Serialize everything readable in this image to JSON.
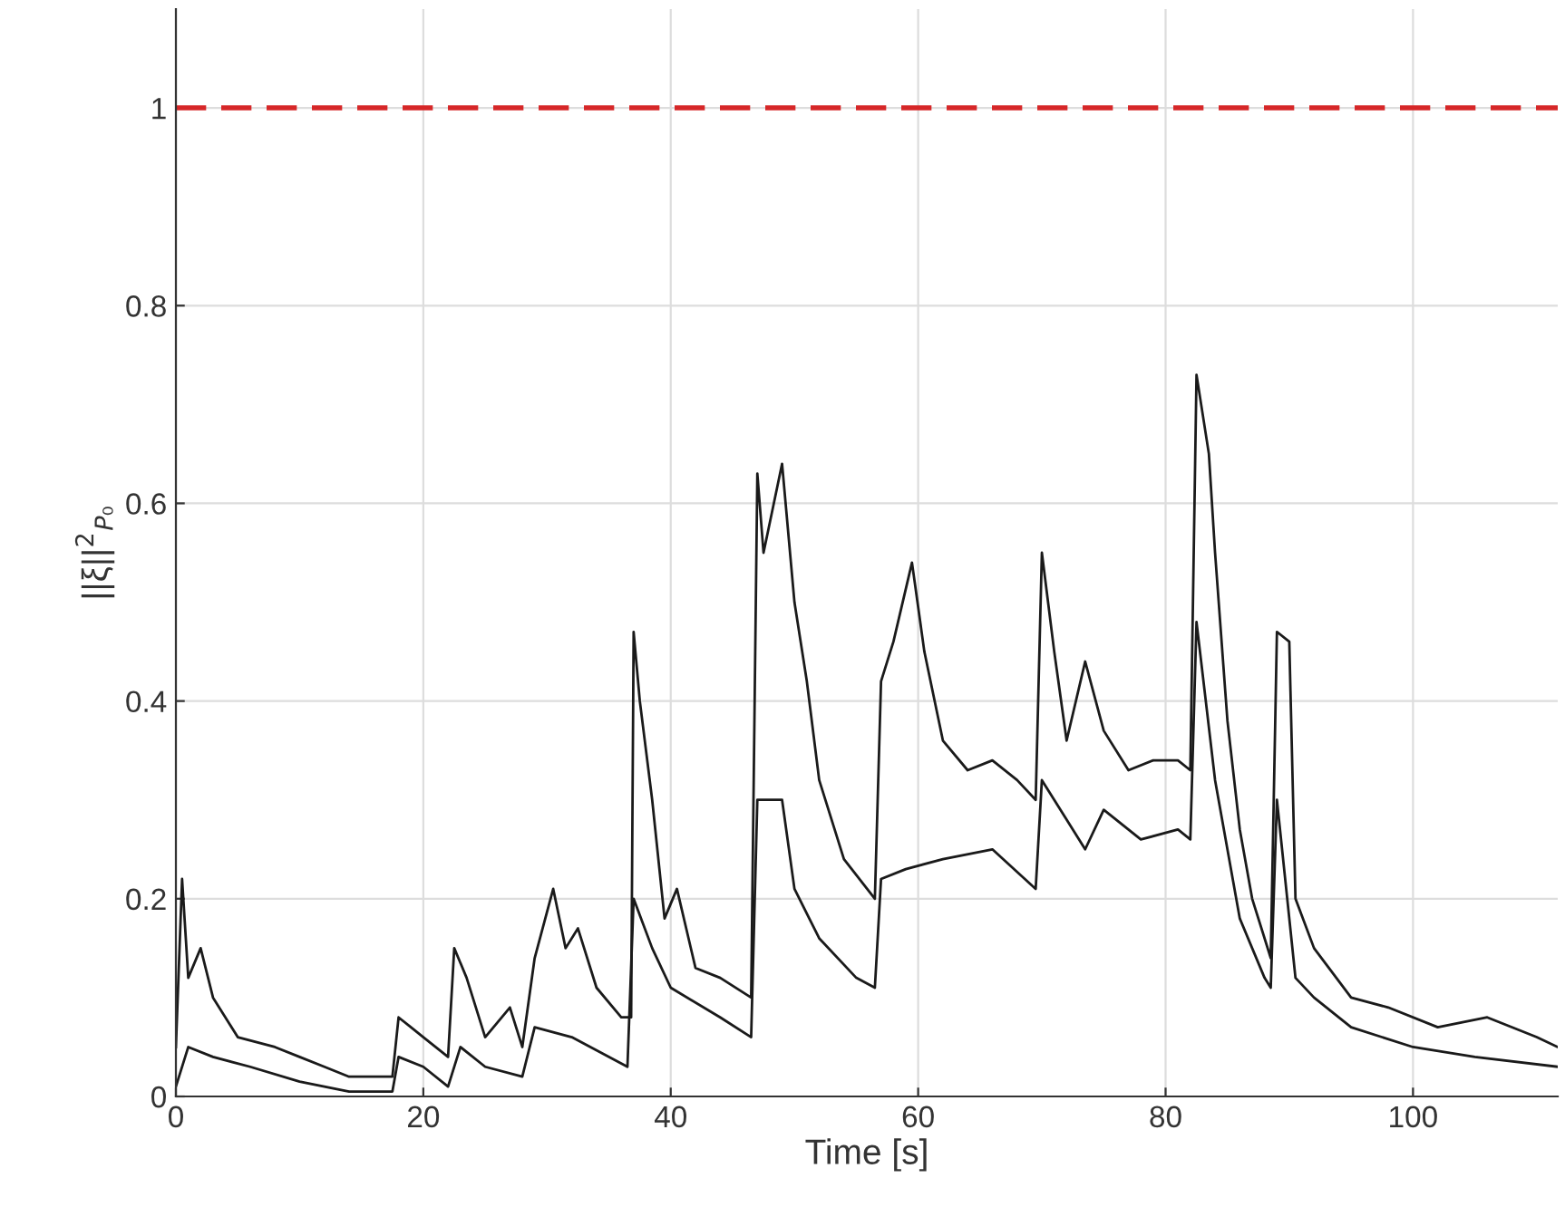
{
  "chart_data": {
    "type": "line",
    "xlabel": "Time [s]",
    "ylabel": "||ξ||$^{2}$$_{P₀}$",
    "xlim": [
      0,
      111.7
    ],
    "xticks": [
      0,
      20,
      40,
      60,
      80,
      100
    ],
    "ylim": [
      0,
      1.1
    ],
    "yticks": [
      0,
      0.2,
      0.4,
      0.6,
      0.8,
      1
    ],
    "grid": true,
    "line_style": "solid",
    "marker": "none",
    "ref_lines": [
      {
        "axis": "y",
        "value": 1,
        "color": "#d62728",
        "line_style": "dashed"
      }
    ],
    "series": [
      {
        "color": "#1a1a1a",
        "x": [
          0,
          0.5,
          1,
          2,
          3,
          5,
          8,
          10,
          12,
          14,
          16,
          17.5,
          18,
          19,
          20,
          22,
          22.5,
          23.5,
          25,
          27,
          28,
          29,
          30.5,
          31.5,
          32.5,
          34,
          36,
          36.8,
          37,
          37.5,
          38.5,
          39.5,
          40.5,
          42,
          44,
          46.5,
          47,
          47.5,
          49,
          50,
          51,
          52,
          54,
          56.5,
          57,
          58,
          59.5,
          60.5,
          62,
          64,
          66,
          68,
          69.5,
          70,
          71,
          72,
          73.5,
          75,
          77,
          79,
          81,
          82,
          82.5,
          83.5,
          84,
          85,
          86,
          87,
          88.5,
          89,
          90,
          90.5,
          92,
          95,
          98,
          102,
          106,
          110,
          111.7
        ],
        "values": [
          0.05,
          0.22,
          0.12,
          0.15,
          0.1,
          0.06,
          0.05,
          0.04,
          0.03,
          0.02,
          0.02,
          0.02,
          0.08,
          0.07,
          0.06,
          0.04,
          0.15,
          0.12,
          0.06,
          0.09,
          0.05,
          0.14,
          0.21,
          0.15,
          0.17,
          0.11,
          0.08,
          0.08,
          0.47,
          0.4,
          0.3,
          0.18,
          0.21,
          0.13,
          0.12,
          0.1,
          0.63,
          0.55,
          0.64,
          0.5,
          0.42,
          0.32,
          0.24,
          0.2,
          0.42,
          0.46,
          0.54,
          0.45,
          0.36,
          0.33,
          0.34,
          0.32,
          0.3,
          0.55,
          0.45,
          0.36,
          0.44,
          0.37,
          0.33,
          0.34,
          0.34,
          0.33,
          0.73,
          0.65,
          0.55,
          0.38,
          0.27,
          0.2,
          0.14,
          0.47,
          0.46,
          0.2,
          0.15,
          0.1,
          0.09,
          0.07,
          0.08,
          0.06,
          0.05
        ]
      },
      {
        "color": "#1a1a1a",
        "x": [
          0,
          1,
          3,
          6,
          10,
          14,
          17.5,
          18,
          20,
          22,
          23,
          25,
          28,
          29,
          32,
          36.5,
          37,
          38.5,
          40,
          44,
          46.5,
          47,
          49,
          50,
          52,
          55,
          56.5,
          57,
          59,
          62,
          66,
          69.5,
          70,
          72,
          73.5,
          75,
          78,
          81,
          82,
          82.5,
          84,
          86,
          88,
          88.5,
          89,
          90.5,
          92,
          95,
          100,
          105,
          111.7
        ],
        "values": [
          0.01,
          0.05,
          0.04,
          0.03,
          0.015,
          0.005,
          0.005,
          0.04,
          0.03,
          0.01,
          0.05,
          0.03,
          0.02,
          0.07,
          0.06,
          0.03,
          0.2,
          0.15,
          0.11,
          0.08,
          0.06,
          0.3,
          0.3,
          0.21,
          0.16,
          0.12,
          0.11,
          0.22,
          0.23,
          0.24,
          0.25,
          0.21,
          0.32,
          0.28,
          0.25,
          0.29,
          0.26,
          0.27,
          0.26,
          0.48,
          0.32,
          0.18,
          0.12,
          0.11,
          0.3,
          0.12,
          0.1,
          0.07,
          0.05,
          0.04,
          0.03
        ]
      }
    ]
  }
}
